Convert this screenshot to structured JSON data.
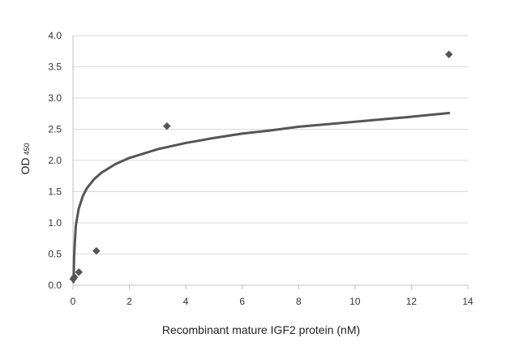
{
  "chart_data": {
    "type": "scatter",
    "title": "",
    "xlabel": "Recombinant mature IGF2 protein (nM)",
    "ylabel": "OD",
    "ylabel_subscript": "450",
    "xlim": [
      0,
      14
    ],
    "ylim": [
      0,
      4.0
    ],
    "x_ticks": [
      0,
      2,
      4,
      6,
      8,
      10,
      12,
      14
    ],
    "y_ticks": [
      0.0,
      0.5,
      1.0,
      1.5,
      2.0,
      2.5,
      3.0,
      3.5,
      4.0
    ],
    "x_tick_labels": [
      "0",
      "2",
      "4",
      "6",
      "8",
      "10",
      "12",
      "14"
    ],
    "y_tick_labels": [
      "0.0",
      "0.5",
      "1.0",
      "1.5",
      "2.0",
      "2.5",
      "3.0",
      "3.5",
      "4.0"
    ],
    "grid": true,
    "legend": "none",
    "series": [
      {
        "marker": "diamond",
        "color": "#555555",
        "points": [
          {
            "x": 0.01,
            "y": 0.1
          },
          {
            "x": 0.05,
            "y": 0.13
          },
          {
            "x": 0.21,
            "y": 0.21
          },
          {
            "x": 0.83,
            "y": 0.55
          },
          {
            "x": 3.33,
            "y": 2.55
          },
          {
            "x": 13.33,
            "y": 3.7
          }
        ]
      }
    ],
    "trendline": {
      "type": "logarithmic",
      "color": "#555555",
      "x": [
        0.02,
        0.04,
        0.07,
        0.1,
        0.2,
        0.35,
        0.5,
        0.75,
        1,
        1.5,
        2,
        3,
        4,
        5,
        6,
        7,
        8,
        9,
        10,
        11,
        12,
        13.33
      ],
      "y": [
        0.05,
        0.45,
        0.72,
        0.95,
        1.22,
        1.43,
        1.56,
        1.7,
        1.8,
        1.94,
        2.04,
        2.18,
        2.28,
        2.36,
        2.43,
        2.48,
        2.54,
        2.58,
        2.62,
        2.66,
        2.7,
        2.76
      ]
    }
  }
}
